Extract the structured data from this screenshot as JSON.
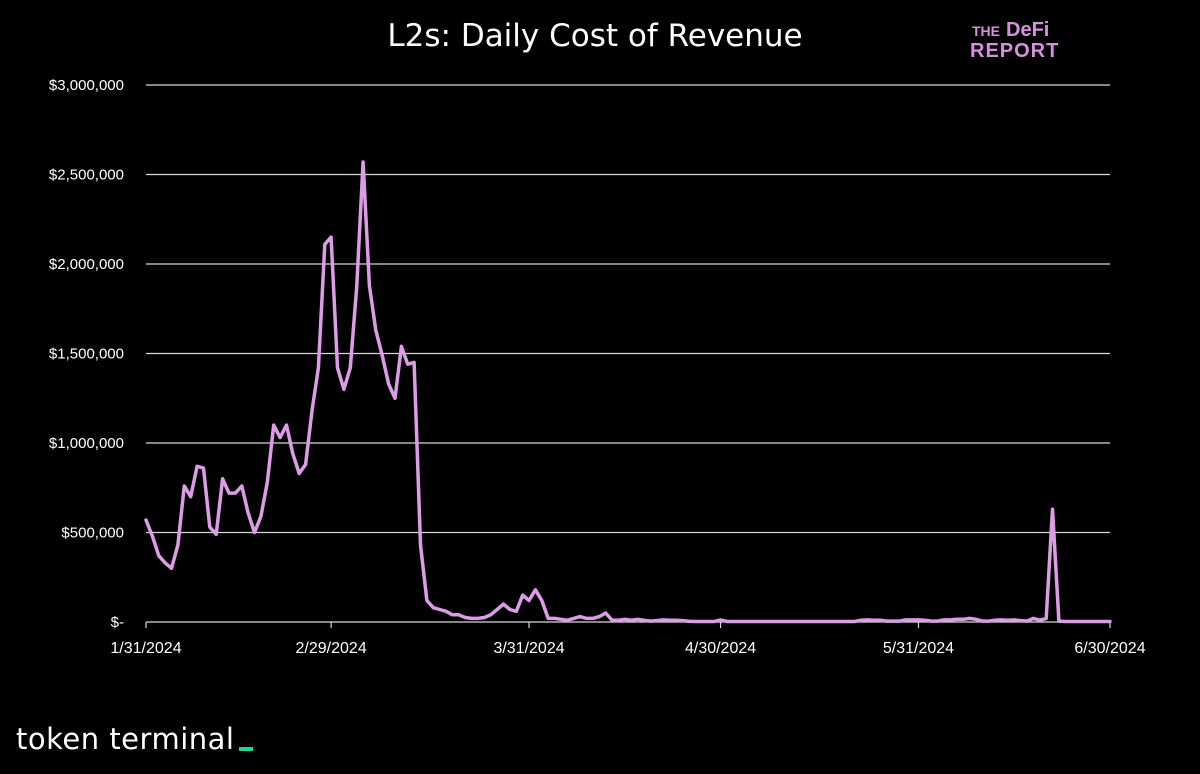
{
  "colors": {
    "background": "#000000",
    "line": "#dc9ce6",
    "grid": "#d8d8d8",
    "logo": "#d98fe0",
    "footer_accent": "#18d89a"
  },
  "logo": {
    "line1_a": "THE",
    "line1_b": "DeFi",
    "line2": "REPORT"
  },
  "footer": {
    "brand": "token terminal"
  },
  "chart_data": {
    "type": "line",
    "title": "L2s: Daily Cost of Revenue",
    "xlabel": "",
    "ylabel": "",
    "ylim": [
      0,
      3000000
    ],
    "grid": true,
    "legend": "none",
    "yticks": [
      {
        "value": 0,
        "label": "$-"
      },
      {
        "value": 500000,
        "label": "$500,000"
      },
      {
        "value": 1000000,
        "label": "$1,000,000"
      },
      {
        "value": 1500000,
        "label": "$1,500,000"
      },
      {
        "value": 2000000,
        "label": "$2,000,000"
      },
      {
        "value": 2500000,
        "label": "$2,500,000"
      },
      {
        "value": 3000000,
        "label": "$3,000,000"
      }
    ],
    "xticks": [
      {
        "day": 0,
        "label": "1/31/2024"
      },
      {
        "day": 29,
        "label": "2/29/2024"
      },
      {
        "day": 60,
        "label": "3/31/2024"
      },
      {
        "day": 90,
        "label": "4/30/2024"
      },
      {
        "day": 121,
        "label": "5/31/2024"
      },
      {
        "day": 151,
        "label": "6/30/2024"
      }
    ],
    "x_unit": "days since 1/31/2024",
    "series": [
      {
        "name": "L2s Daily Cost of Revenue",
        "points": [
          [
            0,
            570000
          ],
          [
            1,
            480000
          ],
          [
            2,
            370000
          ],
          [
            3,
            330000
          ],
          [
            4,
            300000
          ],
          [
            5,
            430000
          ],
          [
            6,
            760000
          ],
          [
            7,
            700000
          ],
          [
            8,
            870000
          ],
          [
            9,
            860000
          ],
          [
            10,
            530000
          ],
          [
            11,
            490000
          ],
          [
            12,
            800000
          ],
          [
            13,
            720000
          ],
          [
            14,
            720000
          ],
          [
            15,
            760000
          ],
          [
            16,
            610000
          ],
          [
            17,
            500000
          ],
          [
            18,
            590000
          ],
          [
            19,
            780000
          ],
          [
            20,
            1100000
          ],
          [
            21,
            1030000
          ],
          [
            22,
            1100000
          ],
          [
            23,
            940000
          ],
          [
            24,
            830000
          ],
          [
            25,
            880000
          ],
          [
            26,
            1180000
          ],
          [
            27,
            1420000
          ],
          [
            28,
            2110000
          ],
          [
            29,
            2150000
          ],
          [
            30,
            1420000
          ],
          [
            31,
            1300000
          ],
          [
            32,
            1420000
          ],
          [
            33,
            1870000
          ],
          [
            34,
            2570000
          ],
          [
            35,
            1880000
          ],
          [
            36,
            1630000
          ],
          [
            37,
            1490000
          ],
          [
            38,
            1330000
          ],
          [
            39,
            1250000
          ],
          [
            40,
            1540000
          ],
          [
            41,
            1440000
          ],
          [
            42,
            1450000
          ],
          [
            43,
            430000
          ],
          [
            44,
            120000
          ],
          [
            45,
            80000
          ],
          [
            46,
            70000
          ],
          [
            47,
            60000
          ],
          [
            48,
            40000
          ],
          [
            49,
            40000
          ],
          [
            50,
            25000
          ],
          [
            51,
            20000
          ],
          [
            52,
            20000
          ],
          [
            53,
            25000
          ],
          [
            54,
            40000
          ],
          [
            55,
            70000
          ],
          [
            56,
            100000
          ],
          [
            57,
            70000
          ],
          [
            58,
            60000
          ],
          [
            59,
            150000
          ],
          [
            60,
            120000
          ],
          [
            61,
            180000
          ],
          [
            62,
            120000
          ],
          [
            63,
            20000
          ],
          [
            64,
            20000
          ],
          [
            65,
            15000
          ],
          [
            66,
            10000
          ],
          [
            67,
            20000
          ],
          [
            68,
            30000
          ],
          [
            69,
            20000
          ],
          [
            70,
            20000
          ],
          [
            71,
            30000
          ],
          [
            72,
            50000
          ],
          [
            73,
            10000
          ],
          [
            74,
            10000
          ],
          [
            75,
            15000
          ],
          [
            76,
            10000
          ],
          [
            77,
            15000
          ],
          [
            78,
            10000
          ],
          [
            79,
            5000
          ],
          [
            80,
            8000
          ],
          [
            81,
            12000
          ],
          [
            82,
            10000
          ],
          [
            83,
            10000
          ],
          [
            84,
            8000
          ],
          [
            85,
            4000
          ],
          [
            86,
            3000
          ],
          [
            87,
            3000
          ],
          [
            88,
            3000
          ],
          [
            89,
            3000
          ],
          [
            90,
            12000
          ],
          [
            91,
            3000
          ],
          [
            92,
            3000
          ],
          [
            93,
            3000
          ],
          [
            94,
            3000
          ],
          [
            95,
            3000
          ],
          [
            96,
            3000
          ],
          [
            97,
            3000
          ],
          [
            98,
            3000
          ],
          [
            99,
            3000
          ],
          [
            100,
            3000
          ],
          [
            101,
            3000
          ],
          [
            102,
            3000
          ],
          [
            103,
            3000
          ],
          [
            104,
            3000
          ],
          [
            105,
            3000
          ],
          [
            106,
            3000
          ],
          [
            107,
            3000
          ],
          [
            108,
            3000
          ],
          [
            109,
            3000
          ],
          [
            110,
            3000
          ],
          [
            111,
            3000
          ],
          [
            112,
            10000
          ],
          [
            113,
            12000
          ],
          [
            114,
            10000
          ],
          [
            115,
            10000
          ],
          [
            116,
            5000
          ],
          [
            117,
            5000
          ],
          [
            118,
            5000
          ],
          [
            119,
            12000
          ],
          [
            120,
            12000
          ],
          [
            121,
            12000
          ],
          [
            122,
            10000
          ],
          [
            123,
            5000
          ],
          [
            124,
            5000
          ],
          [
            125,
            12000
          ],
          [
            126,
            12000
          ],
          [
            127,
            15000
          ],
          [
            128,
            15000
          ],
          [
            129,
            20000
          ],
          [
            130,
            15000
          ],
          [
            131,
            5000
          ],
          [
            132,
            5000
          ],
          [
            133,
            10000
          ],
          [
            134,
            12000
          ],
          [
            135,
            10000
          ],
          [
            136,
            12000
          ],
          [
            137,
            8000
          ],
          [
            138,
            5000
          ],
          [
            139,
            20000
          ],
          [
            140,
            10000
          ],
          [
            141,
            20000
          ],
          [
            142,
            630000
          ],
          [
            143,
            5000
          ],
          [
            144,
            3000
          ],
          [
            145,
            3000
          ],
          [
            146,
            3000
          ],
          [
            147,
            3000
          ],
          [
            148,
            3000
          ],
          [
            149,
            3000
          ],
          [
            150,
            3000
          ],
          [
            151,
            3000
          ]
        ]
      }
    ]
  }
}
